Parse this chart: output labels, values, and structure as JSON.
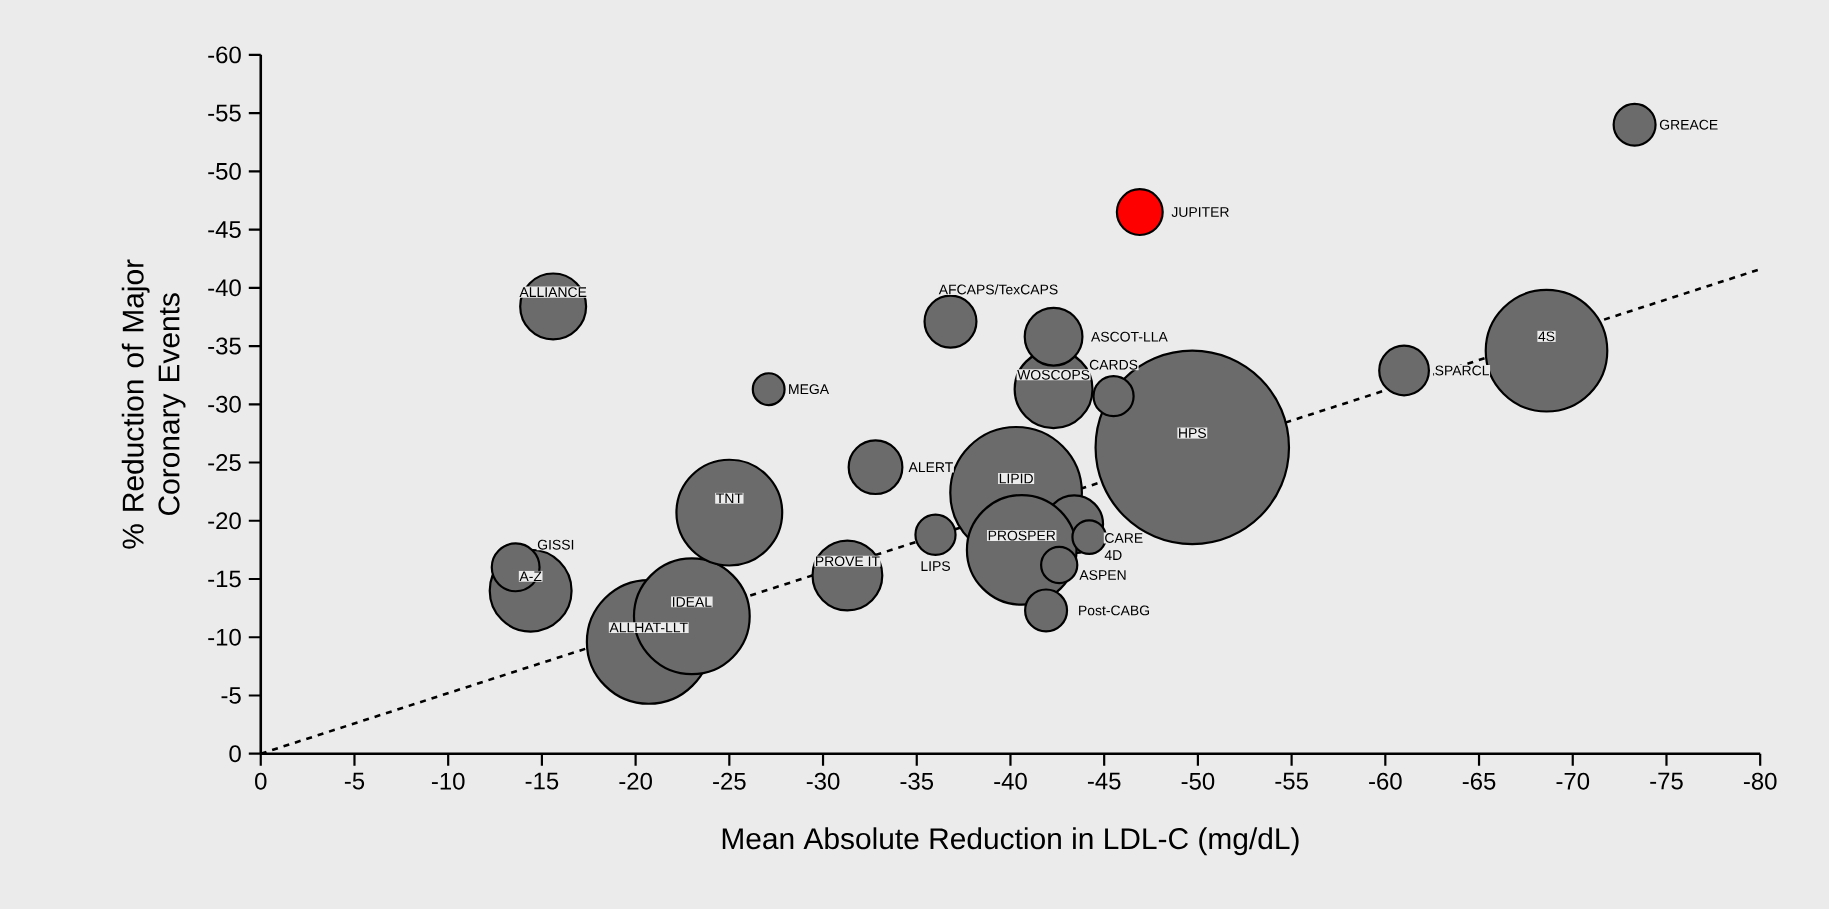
{
  "chart_data": {
    "type": "bubble",
    "xlabel": "Mean Absolute Reduction in LDL-C (mg/dL)",
    "ylabel": "% Reduction of Major Coronary Events",
    "xlim": [
      0,
      -80
    ],
    "ylim": [
      0,
      -60
    ],
    "xticks": [
      0,
      -5,
      -10,
      -15,
      -20,
      -25,
      -30,
      -35,
      -40,
      -45,
      -50,
      -55,
      -60,
      -65,
      -70,
      -75,
      -80
    ],
    "yticks": [
      0,
      -5,
      -10,
      -15,
      -20,
      -25,
      -30,
      -35,
      -40,
      -45,
      -50,
      -55,
      -60
    ],
    "series": [
      {
        "x": [
          -49.7,
          -40.3,
          -20.7,
          -68.6,
          -23.0,
          -25.0,
          -43.4,
          -40.6,
          -14.4,
          -42.3,
          -31.3,
          -15.6,
          -42.3,
          -32.8,
          -36.8,
          -61.0,
          -13.6,
          -46.9,
          -73.3,
          -41.9,
          -45.5,
          -36.0,
          -27.1,
          -44.2,
          -42.6
        ],
        "values": [
          -26.3,
          -22.4,
          -9.6,
          -34.6,
          -11.8,
          -20.7,
          -19.7,
          -17.5,
          -14.0,
          -31.3,
          -15.3,
          -38.4,
          -35.8,
          -24.6,
          -37.1,
          -32.9,
          -16.0,
          -46.5,
          -54.0,
          -12.3,
          -30.7,
          -18.8,
          -31.3,
          -18.6,
          -16.2
        ],
        "sizes": [
          1,
          0.463,
          0.409,
          0.395,
          0.358,
          0.299,
          0.089,
          0.321,
          0.179,
          0.162,
          0.13,
          0.116,
          0.089,
          0.077,
          0.072,
          0.066,
          0.061,
          0.056,
          0.047,
          0.047,
          0.043,
          0.043,
          0.027,
          0.03,
          0.035
        ],
        "colors": [
          "#6b6b6b",
          "#6b6b6b",
          "#6b6b6b",
          "#6b6b6b",
          "#6b6b6b",
          "#6b6b6b",
          "#6b6b6b",
          "#6b6b6b",
          "#6b6b6b",
          "#6b6b6b",
          "#6b6b6b",
          "#6b6b6b",
          "#6b6b6b",
          "#6b6b6b",
          "#6b6b6b",
          "#6b6b6b",
          "#6b6b6b",
          "#ff0000",
          "#6b6b6b",
          "#6b6b6b",
          "#6b6b6b",
          "#6b6b6b",
          "#6b6b6b",
          "#6b6b6b",
          "#6b6b6b"
        ]
      },
      {
        "type": "line",
        "line_style": "dashed",
        "color": "#000000",
        "x": [
          0,
          -80
        ],
        "values": [
          0,
          -41.6
        ]
      }
    ],
    "annotations": [
      {
        "text": "HPS",
        "x": -49.7,
        "y": -26.3
      },
      {
        "text": "LIPID",
        "x": -40.3,
        "y": -22.4
      },
      {
        "text": "PROSPER",
        "x": -40.6,
        "y": -17.5
      },
      {
        "text": "CARE",
        "x": -43.4,
        "y": -19.7
      },
      {
        "text": "4D",
        "x": -44.2,
        "y": -18.6
      },
      {
        "text": "ASPEN",
        "x": -42.6,
        "y": -16.2
      },
      {
        "text": "Post-CABG",
        "x": -41.9,
        "y": -12.3
      },
      {
        "text": "LIPS",
        "x": -36.0,
        "y": -18.8
      },
      {
        "text": "WOSCOPS",
        "x": -42.3,
        "y": -31.3
      },
      {
        "text": "CARDS",
        "x": -45.5,
        "y": -30.7
      },
      {
        "text": "ASCOT-LLA",
        "x": -42.3,
        "y": -35.8
      },
      {
        "text": "AFCAPS/TexCAPS",
        "x": -36.8,
        "y": -37.1
      },
      {
        "text": "ALERT",
        "x": -32.8,
        "y": -24.6
      },
      {
        "text": "PROVE IT",
        "x": -31.3,
        "y": -15.3
      },
      {
        "text": "TNT",
        "x": -25.0,
        "y": -20.7
      },
      {
        "text": "GISSI",
        "x": -13.6,
        "y": -16.0
      },
      {
        "text": "A-Z",
        "x": -14.4,
        "y": -14.0
      },
      {
        "text": "IDEAL",
        "x": -23.0,
        "y": -11.8
      },
      {
        "text": "ALLHAT-LLT",
        "x": -20.7,
        "y": -9.6
      },
      {
        "text": "GREACE",
        "x": -73.3,
        "y": -54.0
      },
      {
        "text": "JUPITER",
        "x": -46.9,
        "y": -46.5
      },
      {
        "text": "ALLIANCE",
        "x": -15.6,
        "y": -38.4
      },
      {
        "text": "MEGA",
        "x": -27.1,
        "y": -31.3
      },
      {
        "text": "4S",
        "x": -68.6,
        "y": -34.6
      },
      {
        "text": "SPARCL",
        "x": -61.0,
        "y": -32.9
      }
    ]
  }
}
